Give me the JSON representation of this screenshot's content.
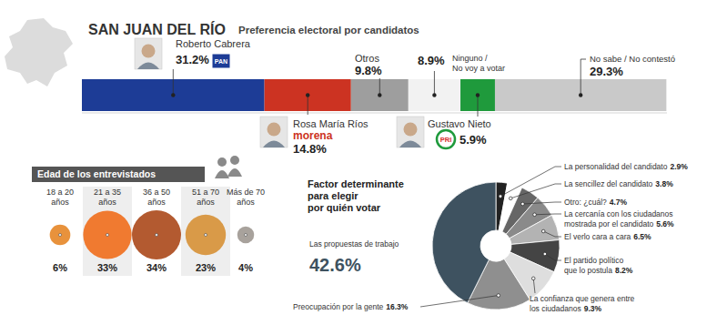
{
  "chart_data": [
    {
      "type": "bar",
      "orientation": "horizontal",
      "stacked": true,
      "title": "SAN JUAN DEL RÍO",
      "subtitle": "Preferencia electoral por candidatos",
      "categories": [
        "Roberto Cabrera",
        "Rosa María Ríos",
        "Otros",
        "Ninguno / No voy a votar",
        "Gustavo Nieto",
        "No sabe / No contestó"
      ],
      "values": [
        31.2,
        14.8,
        9.8,
        8.9,
        5.9,
        29.3
      ],
      "value_labels": [
        "31.2%",
        "14.8%",
        "9.8%",
        "8.9%",
        "5.9%",
        "29.3%"
      ],
      "parties": [
        "PAN",
        "morena",
        null,
        null,
        "PRI",
        null
      ],
      "colors": [
        "#1d3c96",
        "#cc3322",
        "#9e9e9e",
        "#f2f2f2",
        "#1f9a3c",
        "#c9c9c9"
      ],
      "xlim": [
        0,
        100
      ],
      "xticks": [],
      "tick_labels": false,
      "data_labels": true
    },
    {
      "type": "bubble",
      "title": "Edad de los entrevistados",
      "categories": [
        "18 a 20 años",
        "21 a 35 años",
        "36 a 50 años",
        "51 a 70 años",
        "Más de 70 años"
      ],
      "values": [
        6,
        33,
        34,
        23,
        4
      ],
      "value_labels": [
        "6%",
        "33%",
        "34%",
        "23%",
        "4%"
      ],
      "colors": [
        "#e8923c",
        "#f07a30",
        "#b35a30",
        "#d99a48",
        "#a8a29c"
      ],
      "tick_labels": false,
      "data_labels": true
    },
    {
      "type": "pie",
      "title": "Factor determinante para elegir por quién votar",
      "categories": [
        "La personalidad del candidato",
        "La sencillez del candidato",
        "Otro: ¿cuál?",
        "La cercanía con los ciudadanos mostrada por el candidato",
        "El verlo cara a cara",
        "El partido político que lo postula",
        "La confianza que genera entre los ciudadanos",
        "Preocupación por la gente",
        "Las propuestas de trabajo"
      ],
      "values": [
        2.9,
        3.8,
        4.7,
        5.6,
        6.5,
        8.2,
        9.3,
        16.3,
        42.6
      ],
      "value_labels": [
        "2.9%",
        "3.8%",
        "4.7%",
        "5.6%",
        "6.5%",
        "8.2%",
        "9.3%",
        "16.3%",
        "42.6%"
      ],
      "colors": [
        "#222222",
        "#ffffff",
        "#666666",
        "#8a8a8a",
        "#b3b3b3",
        "#444444",
        "#dedede",
        "#8f8f8f",
        "#3e5260"
      ],
      "data_labels": true
    }
  ]
}
